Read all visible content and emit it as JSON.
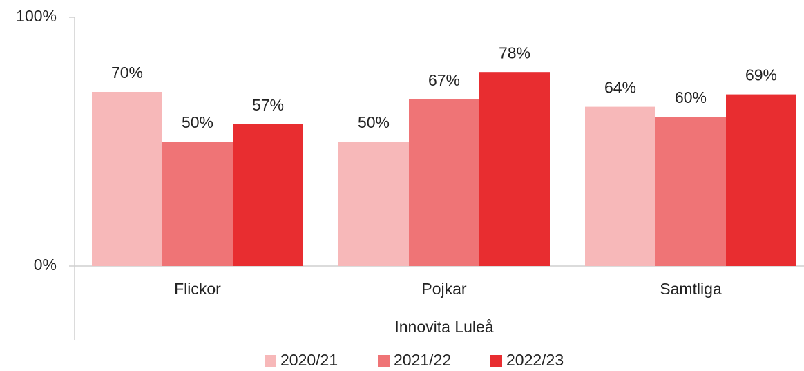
{
  "chart_data": {
    "type": "bar",
    "categories": [
      "Flickor",
      "Pojkar",
      "Samtliga"
    ],
    "x_label": "Innovita Luleå",
    "series": [
      {
        "name": "2020/21",
        "color": "#f7b8b9",
        "values": [
          70,
          50,
          64
        ],
        "value_labels": [
          "70%",
          "50%",
          "64%"
        ]
      },
      {
        "name": "2021/22",
        "color": "#ef7476",
        "values": [
          50,
          67,
          60
        ],
        "value_labels": [
          "50%",
          "67%",
          "60%"
        ]
      },
      {
        "name": "2022/23",
        "color": "#e82d30",
        "values": [
          57,
          78,
          69
        ],
        "value_labels": [
          "57%",
          "78%",
          "69%"
        ]
      }
    ],
    "ylim": [
      0,
      100
    ],
    "yticks": [
      {
        "value": 0,
        "label": "0%"
      },
      {
        "value": 100,
        "label": "100%"
      }
    ],
    "legend": "bottom"
  }
}
